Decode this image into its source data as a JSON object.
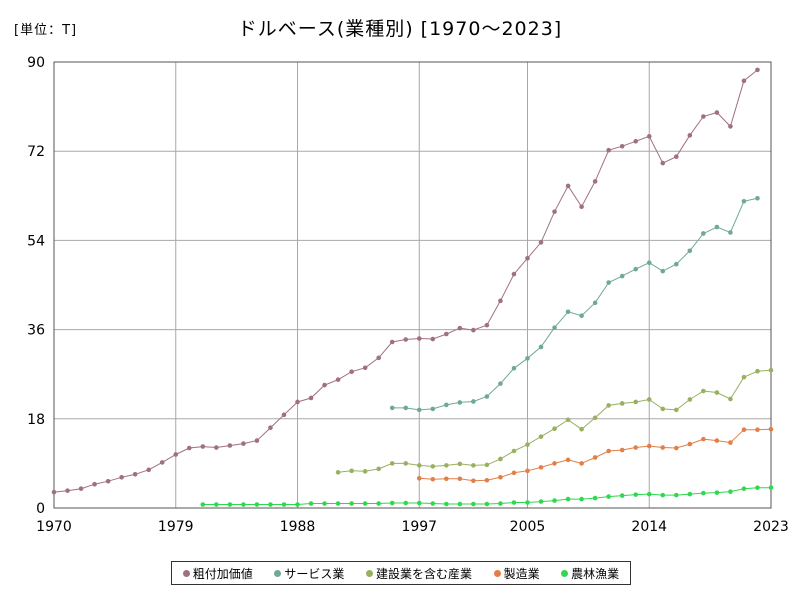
{
  "unit_label": "[単位：T]",
  "title": "ドルベース(業種別) [1970～2023]",
  "chart_data": {
    "type": "line",
    "title": "ドルベース(業種別) [1970～2023]",
    "unit": "[単位：T]",
    "xlim": [
      1970,
      2023
    ],
    "ylim": [
      0,
      90
    ],
    "x_ticks": [
      1970,
      1979,
      1988,
      1997,
      2005,
      2014,
      2023
    ],
    "y_ticks": [
      0,
      18,
      36,
      54,
      72,
      90
    ],
    "grid": true,
    "legend_position": "bottom",
    "series": [
      {
        "name": "粗付加価値",
        "color": "#a07080",
        "x": [
          1970,
          1971,
          1972,
          1973,
          1974,
          1975,
          1976,
          1977,
          1978,
          1979,
          1980,
          1981,
          1982,
          1983,
          1984,
          1985,
          1986,
          1987,
          1988,
          1989,
          1990,
          1991,
          1992,
          1993,
          1994,
          1995,
          1996,
          1997,
          1998,
          1999,
          2000,
          2001,
          2002,
          2003,
          2004,
          2005,
          2006,
          2007,
          2008,
          2009,
          2010,
          2011,
          2012,
          2013,
          2014,
          2015,
          2016,
          2017,
          2018,
          2019,
          2020,
          2021,
          2022
        ],
        "values": [
          3.2,
          3.5,
          3.9,
          4.8,
          5.4,
          6.2,
          6.8,
          7.7,
          9.2,
          10.8,
          12.1,
          12.4,
          12.2,
          12.6,
          13.0,
          13.6,
          16.2,
          18.8,
          21.4,
          22.2,
          24.8,
          25.9,
          27.5,
          28.3,
          30.3,
          33.5,
          34.0,
          34.2,
          34.1,
          35.1,
          36.3,
          35.9,
          36.9,
          41.8,
          47.2,
          50.4,
          53.6,
          59.8,
          65.0,
          60.8,
          65.9,
          72.2,
          73.0,
          74.0,
          75.0,
          69.6,
          70.9,
          75.2,
          79.0,
          79.8,
          77.0,
          86.2,
          88.4
        ]
      },
      {
        "name": "サービス業",
        "color": "#70a898",
        "x": [
          1995,
          1996,
          1997,
          1998,
          1999,
          2000,
          2001,
          2002,
          2003,
          2004,
          2005,
          2006,
          2007,
          2008,
          2009,
          2010,
          2011,
          2012,
          2013,
          2014,
          2015,
          2016,
          2017,
          2018,
          2019,
          2020,
          2021,
          2022
        ],
        "values": [
          20.2,
          20.2,
          19.8,
          20.0,
          20.8,
          21.3,
          21.5,
          22.5,
          25.1,
          28.2,
          30.2,
          32.5,
          36.4,
          39.6,
          38.8,
          41.4,
          45.5,
          46.8,
          48.2,
          49.5,
          47.8,
          49.2,
          51.9,
          55.4,
          56.7,
          55.6,
          61.9,
          62.5
        ]
      },
      {
        "name": "建設業を含む産業",
        "color": "#98b060",
        "x": [
          1991,
          1992,
          1993,
          1994,
          1995,
          1996,
          1997,
          1998,
          1999,
          2000,
          2001,
          2002,
          2003,
          2004,
          2005,
          2006,
          2007,
          2008,
          2009,
          2010,
          2011,
          2012,
          2013,
          2014,
          2015,
          2016,
          2017,
          2018,
          2019,
          2020,
          2021,
          2022,
          2023
        ],
        "values": [
          7.2,
          7.5,
          7.4,
          7.9,
          9.0,
          9.0,
          8.6,
          8.4,
          8.6,
          8.9,
          8.6,
          8.7,
          9.9,
          11.5,
          12.8,
          14.4,
          16.0,
          17.8,
          15.9,
          18.2,
          20.7,
          21.1,
          21.4,
          21.9,
          20.0,
          19.8,
          21.9,
          23.6,
          23.3,
          22.0,
          26.4,
          27.6,
          27.8
        ]
      },
      {
        "name": "製造業",
        "color": "#e08048",
        "x": [
          1997,
          1998,
          1999,
          2000,
          2001,
          2002,
          2003,
          2004,
          2005,
          2006,
          2007,
          2008,
          2009,
          2010,
          2011,
          2012,
          2013,
          2014,
          2015,
          2016,
          2017,
          2018,
          2019,
          2020,
          2021,
          2022,
          2023
        ],
        "values": [
          6.0,
          5.8,
          5.9,
          5.9,
          5.5,
          5.6,
          6.2,
          7.1,
          7.5,
          8.2,
          9.0,
          9.7,
          9.0,
          10.2,
          11.5,
          11.7,
          12.2,
          12.5,
          12.2,
          12.1,
          12.9,
          13.9,
          13.6,
          13.2,
          15.8,
          15.8,
          15.9
        ]
      },
      {
        "name": "農林漁業",
        "color": "#30d850",
        "x": [
          1981,
          1982,
          1983,
          1984,
          1985,
          1986,
          1987,
          1988,
          1989,
          1990,
          1991,
          1992,
          1993,
          1994,
          1995,
          1996,
          1997,
          1998,
          1999,
          2000,
          2001,
          2002,
          2003,
          2004,
          2005,
          2006,
          2007,
          2008,
          2009,
          2010,
          2011,
          2012,
          2013,
          2014,
          2015,
          2016,
          2017,
          2018,
          2019,
          2020,
          2021,
          2022,
          2023
        ],
        "values": [
          0.7,
          0.7,
          0.7,
          0.7,
          0.7,
          0.7,
          0.7,
          0.7,
          0.9,
          0.9,
          0.9,
          0.9,
          0.9,
          0.9,
          1.0,
          1.0,
          1.0,
          0.9,
          0.8,
          0.8,
          0.8,
          0.8,
          0.9,
          1.1,
          1.1,
          1.3,
          1.5,
          1.8,
          1.8,
          2.0,
          2.3,
          2.5,
          2.7,
          2.8,
          2.6,
          2.6,
          2.8,
          3.0,
          3.1,
          3.3,
          3.9,
          4.1,
          4.1
        ]
      }
    ]
  }
}
